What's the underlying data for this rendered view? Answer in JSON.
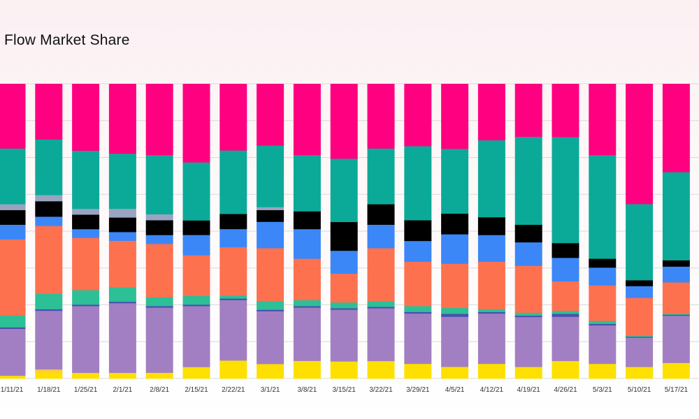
{
  "chart_data": {
    "type": "bar",
    "stacked": true,
    "normalized": true,
    "title": "Flow Market Share",
    "xlabel": "",
    "ylabel": "",
    "ylim": [
      0,
      100
    ],
    "grid": true,
    "categories": [
      "1/11/21",
      "1/18/21",
      "1/25/21",
      "2/1/21",
      "2/8/21",
      "2/15/21",
      "2/22/21",
      "3/1/21",
      "3/8/21",
      "3/15/21",
      "3/22/21",
      "3/29/21",
      "4/5/21",
      "4/12/21",
      "4/19/21",
      "4/26/21",
      "5/3/21",
      "5/10/21",
      "5/17/21"
    ],
    "series": [
      {
        "color": "#fde000",
        "values": [
          1,
          2,
          2,
          2,
          2,
          4,
          6,
          5,
          6,
          6,
          6,
          5,
          4,
          5,
          4,
          6,
          5,
          4,
          5
        ]
      },
      {
        "color": "#ffcc33",
        "values": [
          0,
          1,
          0,
          0,
          0,
          0,
          0,
          0,
          0,
          0,
          0,
          0,
          0,
          0,
          0,
          0,
          0,
          0,
          0
        ]
      },
      {
        "color": "#a27fc2",
        "values": [
          16,
          19,
          23,
          24,
          22,
          21,
          20,
          18,
          18,
          18,
          18,
          17,
          17,
          17,
          17,
          15,
          13,
          10,
          15
        ]
      },
      {
        "color": "#4a4fb0",
        "values": [
          0.5,
          0.5,
          0.5,
          0.5,
          0.5,
          0.5,
          0.5,
          0.5,
          0.5,
          0.5,
          0.5,
          0.5,
          1,
          0.5,
          0.5,
          1,
          0.5,
          0.3,
          0.3
        ]
      },
      {
        "color": "#2dbf96",
        "values": [
          4,
          5,
          5,
          5,
          3,
          3,
          1,
          3,
          2,
          2,
          2,
          2,
          2,
          1,
          1,
          1,
          1,
          0.3,
          0.3
        ]
      },
      {
        "color": "#fe714f",
        "values": [
          26,
          22,
          18,
          16,
          18,
          14,
          16,
          18,
          14,
          10,
          18,
          15,
          15,
          16,
          16,
          10,
          12,
          13,
          10
        ]
      },
      {
        "color": "#3c87f7",
        "values": [
          5,
          3,
          3,
          3,
          3,
          7,
          6,
          9,
          10,
          8,
          8,
          7,
          10,
          9,
          8,
          8,
          6,
          4,
          5
        ]
      },
      {
        "color": "#000000",
        "values": [
          5,
          5,
          5,
          5,
          5,
          5,
          5,
          4,
          6,
          10,
          7,
          7,
          7,
          6,
          6,
          5,
          3,
          2,
          2
        ]
      },
      {
        "color": "#9aa4c0",
        "values": [
          2,
          2,
          2,
          3,
          2,
          0,
          0,
          1,
          0,
          0,
          0,
          0,
          0,
          0,
          0,
          0,
          0,
          0,
          0
        ]
      },
      {
        "color": "#0baa98",
        "values": [
          19,
          18,
          20,
          19,
          20,
          20,
          21,
          21,
          19,
          22,
          19,
          25,
          22,
          26,
          30,
          36,
          35,
          26,
          28
        ]
      },
      {
        "color": "#ff0080",
        "values": [
          22,
          18,
          23,
          24,
          24,
          27,
          22,
          21,
          24,
          26,
          22,
          21,
          22,
          19,
          18,
          18,
          24,
          41,
          28
        ]
      }
    ]
  }
}
